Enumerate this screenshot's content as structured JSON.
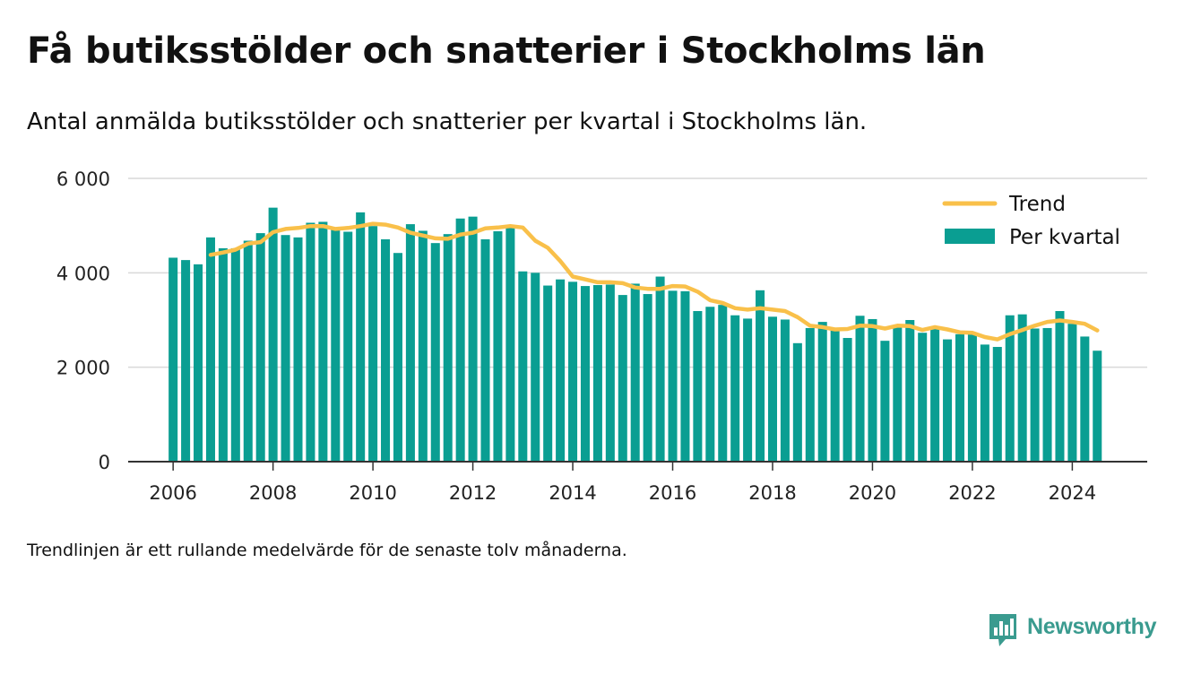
{
  "chart_data": {
    "type": "bar",
    "title": "Få butiksstölder och snatterier i Stockholms län",
    "subtitle": "Antal anmälda butiksstölder och snatterier per kvartal i Stockholms län.",
    "note": "Trendlinjen är ett rullande medelvärde för de senaste tolv månaderna.",
    "xlabel": "",
    "ylabel": "",
    "ylim": [
      0,
      6000
    ],
    "xlim": [
      2005.1,
      2025.5
    ],
    "y_ticks": [
      0,
      2000,
      4000,
      6000
    ],
    "y_tick_labels": [
      "0",
      "2 000",
      "4 000",
      "6 000"
    ],
    "x_ticks": [
      2006,
      2008,
      2010,
      2012,
      2014,
      2016,
      2018,
      2020,
      2022,
      2024
    ],
    "x_tick_labels": [
      "2006",
      "2008",
      "2010",
      "2012",
      "2014",
      "2016",
      "2018",
      "2020",
      "2022",
      "2024"
    ],
    "grid": "horizontal",
    "legend_position": "top-right",
    "colors": {
      "bars": "#0a9e92",
      "trend": "#f9c04a",
      "grid": "#d9d9d9",
      "axis": "#333333"
    },
    "legend": [
      {
        "label": "Trend",
        "symbol": "line",
        "color": "#f9c04a"
      },
      {
        "label": "Per kvartal",
        "symbol": "bar",
        "color": "#0a9e92"
      }
    ],
    "series": [
      {
        "name": "Per kvartal",
        "type": "bar",
        "start_year": 2006,
        "start_quarter": 1,
        "values": [
          4320,
          4270,
          4180,
          4750,
          4520,
          4520,
          4680,
          4840,
          5380,
          4800,
          4750,
          5060,
          5080,
          4930,
          4870,
          5280,
          4990,
          4710,
          4420,
          5030,
          4890,
          4630,
          4820,
          5150,
          5190,
          4710,
          4880,
          5000,
          4030,
          4000,
          3730,
          3860,
          3810,
          3720,
          3740,
          3750,
          3530,
          3770,
          3550,
          3920,
          3620,
          3610,
          3190,
          3280,
          3320,
          3100,
          3030,
          3630,
          3070,
          3010,
          2510,
          2830,
          2960,
          2780,
          2620,
          3090,
          3020,
          2560,
          2890,
          3000,
          2730,
          2810,
          2590,
          2700,
          2700,
          2480,
          2430,
          3100,
          3120,
          2820,
          2830,
          3190,
          2920,
          2650,
          2350
        ]
      },
      {
        "name": "Trend",
        "type": "line",
        "start_year": 2006,
        "start_quarter": 1,
        "values": [
          null,
          null,
          null,
          4380,
          4430,
          4490,
          4620,
          4650,
          4860,
          4930,
          4950,
          4990,
          4990,
          4930,
          4950,
          4990,
          5040,
          5020,
          4960,
          4850,
          4790,
          4730,
          4720,
          4810,
          4850,
          4940,
          4960,
          4990,
          4960,
          4680,
          4530,
          4250,
          3920,
          3860,
          3800,
          3800,
          3780,
          3690,
          3660,
          3660,
          3720,
          3710,
          3600,
          3420,
          3360,
          3250,
          3220,
          3250,
          3220,
          3190,
          3060,
          2880,
          2850,
          2800,
          2810,
          2880,
          2870,
          2820,
          2880,
          2870,
          2790,
          2850,
          2800,
          2740,
          2730,
          2640,
          2590,
          2700,
          2790,
          2880,
          2960,
          2990,
          2960,
          2920,
          2780
        ]
      }
    ]
  },
  "brand": {
    "name": "Newsworthy",
    "icon": "bar-chart-speech-bubble-icon",
    "color": "#3a9b8f"
  }
}
